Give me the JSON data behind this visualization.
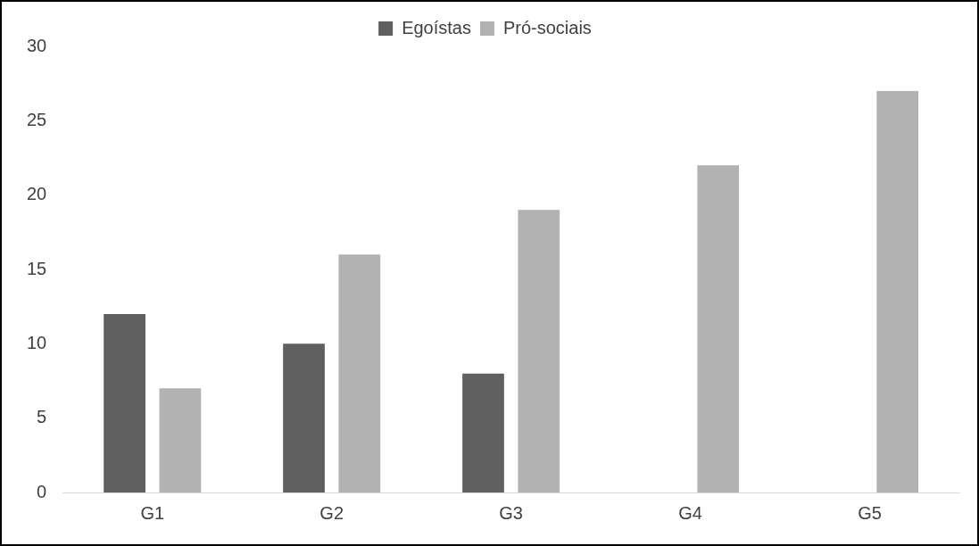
{
  "chart_data": {
    "type": "bar",
    "categories": [
      "G1",
      "G2",
      "G3",
      "G4",
      "G5"
    ],
    "series": [
      {
        "name": "Egoístas",
        "color": "#5f5f5f",
        "values": [
          12,
          10,
          8,
          0,
          0
        ]
      },
      {
        "name": "Pró-sociais",
        "color": "#b2b2b2",
        "values": [
          7,
          16,
          19,
          22,
          27
        ]
      }
    ],
    "ylim": [
      0,
      30
    ],
    "yticks": [
      0,
      5,
      10,
      15,
      20,
      25,
      30
    ],
    "grid": false,
    "legend": "top"
  }
}
